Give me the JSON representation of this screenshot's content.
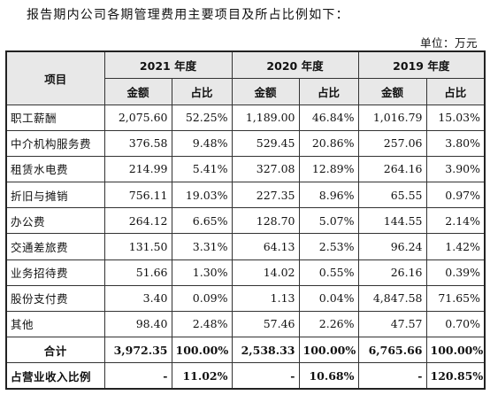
{
  "intro": "报告期内公司各期管理费用主要项目及所占比例如下：",
  "unit": "单位：万元",
  "table": {
    "item_header": "项目",
    "years": [
      "2021 年度",
      "2020 年度",
      "2019 年度"
    ],
    "sub_headers": [
      "金额",
      "占比",
      "金额",
      "占比",
      "金额",
      "占比"
    ],
    "rows": [
      {
        "label": "职工薪酬",
        "cells": [
          "2,075.60",
          "52.25%",
          "1,189.00",
          "46.84%",
          "1,016.79",
          "15.03%"
        ]
      },
      {
        "label": "中介机构服务费",
        "cells": [
          "376.58",
          "9.48%",
          "529.45",
          "20.86%",
          "257.06",
          "3.80%"
        ]
      },
      {
        "label": "租赁水电费",
        "cells": [
          "214.99",
          "5.41%",
          "327.08",
          "12.89%",
          "264.16",
          "3.90%"
        ]
      },
      {
        "label": "折旧与摊销",
        "cells": [
          "756.11",
          "19.03%",
          "227.35",
          "8.96%",
          "65.55",
          "0.97%"
        ]
      },
      {
        "label": "办公费",
        "cells": [
          "264.12",
          "6.65%",
          "128.70",
          "5.07%",
          "144.55",
          "2.14%"
        ]
      },
      {
        "label": "交通差旅费",
        "cells": [
          "131.50",
          "3.31%",
          "64.13",
          "2.53%",
          "96.24",
          "1.42%"
        ]
      },
      {
        "label": "业务招待费",
        "cells": [
          "51.66",
          "1.30%",
          "14.02",
          "0.55%",
          "26.16",
          "0.39%"
        ]
      },
      {
        "label": "股份支付费",
        "cells": [
          "3.40",
          "0.09%",
          "1.13",
          "0.04%",
          "4,847.58",
          "71.65%"
        ]
      },
      {
        "label": "其他",
        "cells": [
          "98.40",
          "2.48%",
          "57.46",
          "2.26%",
          "47.57",
          "0.70%"
        ]
      }
    ],
    "total": {
      "label": "合计",
      "cells": [
        "3,972.35",
        "100.00%",
        "2,538.33",
        "100.00%",
        "6,765.66",
        "100.00%"
      ]
    },
    "ratio": {
      "label": "占营业收入比例",
      "cells": [
        "-",
        "11.02%",
        "-",
        "10.68%",
        "-",
        "120.85%"
      ]
    }
  }
}
